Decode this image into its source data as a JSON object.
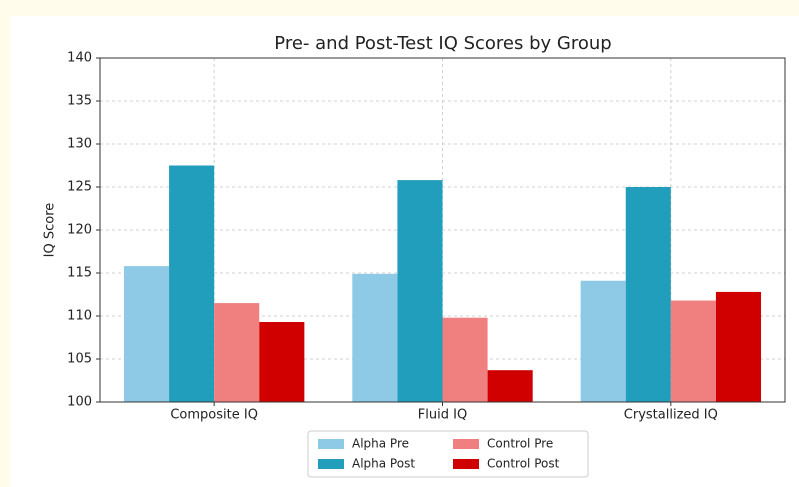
{
  "chart_data": {
    "type": "bar",
    "title": "Pre- and Post-Test IQ Scores by Group",
    "ylabel": "IQ Score",
    "categories": [
      "Composite IQ",
      "Fluid IQ",
      "Crystallized IQ"
    ],
    "series": [
      {
        "name": "Alpha Pre",
        "color": "#8ecae6",
        "values": [
          115.8,
          114.9,
          114.1
        ]
      },
      {
        "name": "Alpha Post",
        "color": "#219ebc",
        "values": [
          127.5,
          125.8,
          125.0
        ]
      },
      {
        "name": "Control Pre",
        "color": "#f08080",
        "values": [
          111.5,
          109.8,
          111.8
        ]
      },
      {
        "name": "Control Post",
        "color": "#d00000",
        "values": [
          109.3,
          103.7,
          112.8
        ]
      }
    ],
    "ylim": [
      100,
      140
    ],
    "yticks": [
      100,
      105,
      110,
      115,
      120,
      125,
      130,
      135,
      140
    ],
    "grid": true,
    "legend": "lower center"
  }
}
